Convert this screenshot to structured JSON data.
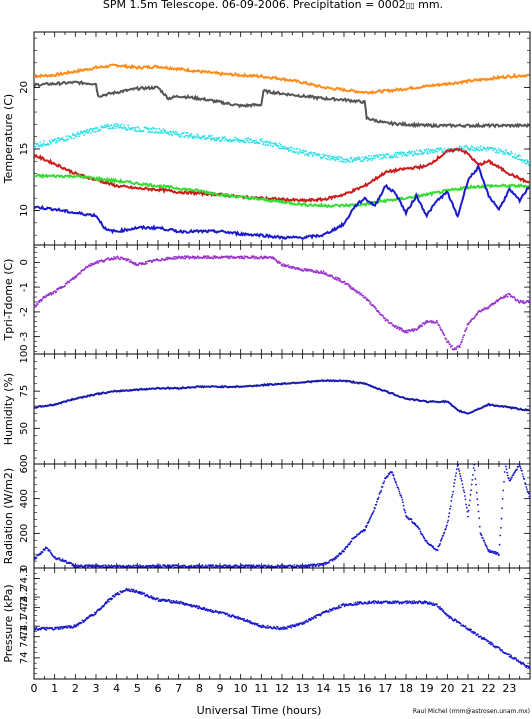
{
  "title": "SPM 1.5m Telescope. 06-09-2006. Precipitation = 0002",
  "title_glyph": "▯▯",
  "title_suffix": " mm.",
  "credit": "Raul Michel (rmm@astrosen.unam.mx)",
  "chart_data": [
    {
      "type": "line",
      "ylabel": "Temperature (C)",
      "ylim": [
        7.2,
        24.5
      ],
      "yticks": [
        10,
        15,
        20
      ],
      "grid": false,
      "series": [
        {
          "color": "#ff8c1a",
          "style": "line",
          "x": [
            0,
            1,
            2,
            3,
            4,
            5,
            6,
            7,
            8,
            9,
            10,
            11,
            12,
            13,
            14,
            15,
            16,
            17,
            18,
            19,
            20,
            21,
            22,
            23,
            24
          ],
          "y": [
            20.9,
            21.0,
            21.3,
            21.6,
            21.8,
            21.6,
            21.7,
            21.5,
            21.3,
            21.1,
            21.0,
            20.9,
            20.7,
            20.4,
            20.0,
            19.8,
            19.6,
            19.7,
            19.9,
            20.1,
            20.3,
            20.5,
            20.7,
            20.9,
            21.0
          ]
        },
        {
          "color": "#555555",
          "style": "line",
          "x": [
            0,
            1,
            2,
            3,
            3.1,
            4,
            5,
            6,
            6.5,
            7,
            8,
            9,
            10,
            11,
            11.1,
            12,
            13,
            14,
            15,
            16,
            16.1,
            17,
            18,
            19,
            19.3,
            20,
            21,
            22,
            23,
            24
          ],
          "y": [
            20.2,
            20.3,
            20.4,
            20.3,
            19.3,
            19.6,
            19.9,
            20.0,
            19.1,
            19.3,
            19.1,
            18.8,
            18.5,
            18.6,
            19.7,
            19.5,
            19.3,
            19.1,
            19.0,
            18.8,
            17.5,
            17.1,
            17.0,
            16.9,
            16.9,
            16.9,
            16.9,
            16.9,
            16.9,
            16.9
          ]
        },
        {
          "color": "#33e0e8",
          "style": "scatter",
          "x": [
            0,
            1,
            2,
            3,
            4,
            5,
            6,
            7,
            8,
            9,
            10,
            11,
            12,
            13,
            14,
            15,
            16,
            17,
            18,
            19,
            20,
            21,
            22,
            23,
            24
          ],
          "y": [
            15.3,
            15.6,
            16.1,
            16.6,
            16.9,
            16.6,
            16.5,
            16.2,
            16.0,
            15.8,
            15.7,
            15.6,
            15.2,
            14.7,
            14.4,
            14.1,
            14.2,
            14.4,
            14.6,
            14.8,
            14.9,
            15.1,
            15.0,
            14.7,
            13.8
          ]
        },
        {
          "color": "#cc1a1a",
          "style": "line",
          "x": [
            0,
            1,
            2,
            3,
            4,
            5,
            6,
            7,
            8,
            9,
            10,
            11,
            12,
            13,
            14,
            15,
            16,
            17,
            18,
            19,
            19.5,
            20,
            20.6,
            21,
            21.5,
            22,
            22.5,
            23,
            24
          ],
          "y": [
            14.5,
            13.8,
            13.0,
            12.5,
            12.0,
            11.8,
            11.7,
            11.5,
            11.4,
            11.3,
            11.1,
            11.0,
            10.9,
            10.8,
            10.9,
            11.3,
            12.0,
            13.1,
            13.4,
            13.6,
            14.2,
            14.8,
            15.0,
            14.6,
            13.7,
            14.0,
            13.5,
            13.0,
            12.2
          ]
        },
        {
          "color": "#33dd33",
          "style": "line",
          "x": [
            0,
            1,
            2,
            3,
            4,
            5,
            6,
            7,
            8,
            9,
            10,
            11,
            12,
            13,
            14,
            15,
            16,
            17,
            18,
            19,
            20,
            21,
            22,
            23,
            24
          ],
          "y": [
            12.8,
            12.8,
            12.8,
            12.6,
            12.4,
            12.2,
            12.0,
            11.8,
            11.6,
            11.3,
            11.1,
            10.9,
            10.7,
            10.5,
            10.4,
            10.4,
            10.5,
            10.8,
            11.0,
            11.3,
            11.6,
            11.9,
            12.0,
            12.0,
            12.0
          ]
        },
        {
          "color": "#1a1acc",
          "style": "line",
          "x": [
            0,
            1,
            2,
            3,
            3.5,
            4,
            5,
            6,
            7,
            8,
            9,
            10,
            11,
            12,
            13,
            14,
            15,
            15.5,
            16,
            16.5,
            17,
            17.5,
            18,
            18.5,
            19,
            19.5,
            20,
            20.5,
            21,
            21.5,
            22,
            22.5,
            23,
            23.5,
            24
          ],
          "y": [
            10.3,
            10.1,
            9.8,
            9.6,
            8.4,
            8.3,
            8.6,
            8.6,
            8.3,
            8.3,
            8.3,
            8.1,
            8.0,
            7.8,
            7.8,
            8.0,
            8.9,
            10.3,
            11.0,
            10.4,
            12.0,
            11.4,
            9.8,
            11.2,
            9.6,
            10.8,
            11.5,
            9.5,
            12.5,
            13.5,
            11.2,
            10.1,
            11.7,
            10.8,
            12.1
          ]
        }
      ]
    },
    {
      "type": "scatter",
      "ylabel": "Tpri-Tdome (C)",
      "ylim": [
        -3.7,
        0.7
      ],
      "yticks": [
        -3,
        -2,
        -1,
        0
      ],
      "series": [
        {
          "color": "#9933cc",
          "x": [
            0,
            0.5,
            1,
            1.5,
            2,
            2.5,
            3,
            3.5,
            4,
            4.5,
            5,
            6,
            7,
            8,
            9,
            10,
            11,
            11.5,
            12,
            13,
            14,
            15,
            16,
            17,
            17.5,
            18,
            18.5,
            19,
            19.5,
            20,
            20.3,
            20.6,
            21,
            21.5,
            22,
            22.5,
            23,
            23.5,
            24
          ],
          "y": [
            -1.8,
            -1.4,
            -1.2,
            -0.9,
            -0.6,
            -0.2,
            0.0,
            0.1,
            0.2,
            0.1,
            -0.1,
            0.1,
            0.2,
            0.2,
            0.2,
            0.2,
            0.2,
            0.2,
            -0.1,
            -0.3,
            -0.4,
            -0.8,
            -1.4,
            -2.3,
            -2.6,
            -2.8,
            -2.7,
            -2.4,
            -2.4,
            -3.2,
            -3.5,
            -3.4,
            -2.5,
            -2.0,
            -1.8,
            -1.5,
            -1.3,
            -1.6,
            -1.6
          ]
        }
      ]
    },
    {
      "type": "line",
      "ylabel": "Humidity (%)",
      "ylim": [
        26,
        100
      ],
      "yticks": [
        25,
        50,
        75,
        100
      ],
      "ytick_labels": [
        "",
        "50",
        "75",
        "100"
      ],
      "series": [
        {
          "color": "#1a1aaa",
          "x": [
            0,
            1,
            2,
            3,
            4,
            5,
            6,
            7,
            8,
            9,
            10,
            11,
            12,
            13,
            14,
            15,
            16,
            17,
            18,
            19,
            20,
            20.5,
            21,
            21.5,
            22,
            23,
            24
          ],
          "y": [
            64,
            66,
            70,
            73,
            75,
            76,
            77,
            77,
            78,
            78,
            78,
            79,
            80,
            81,
            82,
            82,
            80,
            75,
            70,
            68,
            68,
            62,
            60,
            63,
            66,
            64,
            62
          ]
        }
      ]
    },
    {
      "type": "scatter",
      "ylabel": "Radiation (W/m2)",
      "ylim": [
        0,
        600
      ],
      "yticks": [
        0,
        200,
        400,
        600
      ],
      "series": [
        {
          "color": "#1a1acc",
          "x": [
            0,
            0.3,
            0.6,
            1,
            1.5,
            2,
            3,
            4,
            5,
            6,
            7,
            8,
            9,
            10,
            11,
            12,
            13,
            14,
            14.5,
            15,
            15.5,
            16,
            16.5,
            17,
            17.3,
            17.8,
            18,
            18.5,
            19,
            19.5,
            20,
            20.5,
            20.8,
            21,
            21.3,
            21.6,
            22,
            22.5,
            22.8,
            23,
            23.5,
            24
          ],
          "y": [
            50,
            80,
            120,
            60,
            40,
            10,
            10,
            10,
            10,
            10,
            10,
            10,
            10,
            10,
            10,
            10,
            10,
            20,
            50,
            100,
            180,
            220,
            350,
            520,
            560,
            400,
            300,
            250,
            150,
            100,
            250,
            600,
            450,
            300,
            600,
            200,
            100,
            80,
            600,
            500,
            600,
            400
          ]
        }
      ]
    },
    {
      "type": "scatter",
      "ylabel": "Pressure (kPa)",
      "ylim": [
        73.92,
        74.34
      ],
      "yticks": [
        74.0,
        74.1,
        74.2,
        74.3
      ],
      "ytick_labels": [
        "74",
        "74.1",
        "74.1",
        "74.2",
        "74.2",
        "74.3"
      ],
      "ytick_values": [
        74.0,
        74.08,
        74.12,
        74.19,
        74.23,
        74.3
      ],
      "series": [
        {
          "color": "#1a1acc",
          "x": [
            0,
            1,
            2,
            3,
            3.5,
            4,
            4.5,
            5,
            6,
            7,
            8,
            9,
            10,
            11,
            12,
            13,
            14,
            15,
            16,
            17,
            18,
            19,
            19.5,
            20,
            21,
            22,
            23,
            24
          ],
          "y": [
            74.11,
            74.11,
            74.12,
            74.17,
            74.21,
            74.24,
            74.26,
            74.25,
            74.22,
            74.21,
            74.19,
            74.17,
            74.15,
            74.12,
            74.11,
            74.13,
            74.17,
            74.2,
            74.21,
            74.21,
            74.21,
            74.21,
            74.2,
            74.16,
            74.11,
            74.06,
            74.01,
            73.96
          ]
        }
      ]
    }
  ],
  "x_axis": {
    "label": "Universal Time (hours)",
    "xlim": [
      0,
      24
    ],
    "ticks": [
      "0",
      "1",
      "2",
      "3",
      "4",
      "5",
      "6",
      "7",
      "8",
      "9",
      "10",
      "11",
      "12",
      "13",
      "14",
      "15",
      "16",
      "17",
      "18",
      "19",
      "20",
      "21",
      "22",
      "23"
    ]
  }
}
